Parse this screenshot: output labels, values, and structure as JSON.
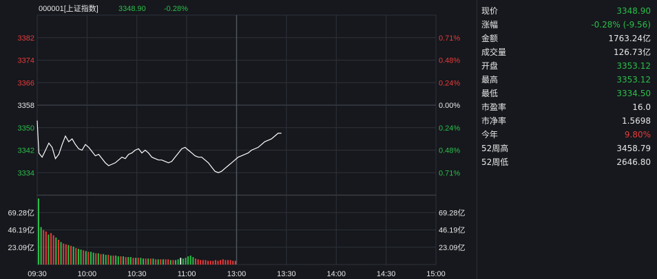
{
  "header": {
    "code_name": "000001[上证指数]",
    "last_price": "3348.90",
    "change_pct": "-0.28%"
  },
  "colors": {
    "background": "#16181d",
    "grid": "#2f323a",
    "price_line": "#ffffff",
    "up": "#e83a3a",
    "down": "#2bbf4a",
    "neutral": "#e8e8e8"
  },
  "chart_data": {
    "type": "line",
    "prev_close": 3358,
    "price_axis": {
      "ylim": [
        3326,
        3390
      ],
      "ticks": [
        {
          "value": 3382,
          "label": "3382",
          "pct": "0.71%",
          "side": "up"
        },
        {
          "value": 3374,
          "label": "3374",
          "pct": "0.48%",
          "side": "up"
        },
        {
          "value": 3366,
          "label": "3366",
          "pct": "0.24%",
          "side": "up"
        },
        {
          "value": 3358,
          "label": "3358",
          "pct": "0.00%",
          "side": "flat"
        },
        {
          "value": 3350,
          "label": "3350",
          "pct": "0.24%",
          "side": "down"
        },
        {
          "value": 3342,
          "label": "3342",
          "pct": "0.48%",
          "side": "down"
        },
        {
          "value": 3334,
          "label": "3334",
          "pct": "0.71%",
          "side": "down"
        }
      ]
    },
    "time_axis": {
      "labels": [
        "09:30",
        "10:00",
        "10:30",
        "11:00",
        "13:00",
        "13:30",
        "14:00",
        "14:30",
        "15:00"
      ],
      "total_minutes": 240
    },
    "price_series": [
      [
        0,
        3352.5
      ],
      [
        1,
        3341
      ],
      [
        3,
        3339.5
      ],
      [
        5,
        3342
      ],
      [
        7,
        3344.5
      ],
      [
        9,
        3343
      ],
      [
        11,
        3339
      ],
      [
        13,
        3340.5
      ],
      [
        15,
        3344
      ],
      [
        17,
        3347
      ],
      [
        19,
        3345
      ],
      [
        21,
        3346
      ],
      [
        23,
        3344
      ],
      [
        25,
        3342.5
      ],
      [
        27,
        3342
      ],
      [
        29,
        3344
      ],
      [
        31,
        3343
      ],
      [
        33,
        3341.5
      ],
      [
        35,
        3340
      ],
      [
        37,
        3340.5
      ],
      [
        39,
        3339
      ],
      [
        41,
        3337.5
      ],
      [
        43,
        3336.5
      ],
      [
        45,
        3337
      ],
      [
        47,
        3337.5
      ],
      [
        49,
        3338.5
      ],
      [
        51,
        3339.5
      ],
      [
        53,
        3339
      ],
      [
        55,
        3340.5
      ],
      [
        57,
        3341
      ],
      [
        59,
        3342
      ],
      [
        61,
        3342.5
      ],
      [
        63,
        3341
      ],
      [
        65,
        3342
      ],
      [
        67,
        3341
      ],
      [
        69,
        3339.5
      ],
      [
        71,
        3339
      ],
      [
        73,
        3338.5
      ],
      [
        75,
        3338.5
      ],
      [
        77,
        3338
      ],
      [
        79,
        3337.5
      ],
      [
        81,
        3338
      ],
      [
        83,
        3339.5
      ],
      [
        85,
        3341
      ],
      [
        87,
        3342.5
      ],
      [
        89,
        3343
      ],
      [
        91,
        3342
      ],
      [
        93,
        3341
      ],
      [
        95,
        3340
      ],
      [
        97,
        3339.5
      ],
      [
        99,
        3339.5
      ],
      [
        101,
        3338.5
      ],
      [
        103,
        3337.5
      ],
      [
        105,
        3336
      ],
      [
        107,
        3334.5
      ],
      [
        109,
        3334
      ],
      [
        111,
        3334.5
      ],
      [
        113,
        3335.5
      ],
      [
        115,
        3336.5
      ],
      [
        117,
        3337.5
      ],
      [
        119,
        3338.5
      ],
      [
        121,
        3339.5
      ],
      [
        123,
        3340
      ],
      [
        125,
        3340.5
      ],
      [
        127,
        3341
      ],
      [
        129,
        3342
      ],
      [
        131,
        3342.5
      ],
      [
        133,
        3343
      ],
      [
        135,
        3344
      ],
      [
        137,
        3345
      ],
      [
        139,
        3345.5
      ],
      [
        141,
        3346
      ],
      [
        143,
        3347
      ],
      [
        145,
        3348
      ],
      [
        147,
        3348
      ]
    ],
    "volume_axis": {
      "max": 92.5,
      "ticks": [
        {
          "value": 69.28,
          "label": "69.28亿"
        },
        {
          "value": 46.19,
          "label": "46.19亿"
        },
        {
          "value": 23.09,
          "label": "23.09亿"
        }
      ]
    },
    "volume_bars": [
      {
        "value": 88,
        "dir": "down"
      },
      {
        "value": 50,
        "dir": "down"
      },
      {
        "value": 46,
        "dir": "up"
      },
      {
        "value": 44,
        "dir": "up"
      },
      {
        "value": 40,
        "dir": "down"
      },
      {
        "value": 42,
        "dir": "up"
      },
      {
        "value": 39,
        "dir": "up"
      },
      {
        "value": 36,
        "dir": "down"
      },
      {
        "value": 33,
        "dir": "up"
      },
      {
        "value": 30,
        "dir": "down"
      },
      {
        "value": 28,
        "dir": "up"
      },
      {
        "value": 27,
        "dir": "up"
      },
      {
        "value": 26,
        "dir": "down"
      },
      {
        "value": 25,
        "dir": "up"
      },
      {
        "value": 24,
        "dir": "down"
      },
      {
        "value": 22,
        "dir": "up"
      },
      {
        "value": 21,
        "dir": "down"
      },
      {
        "value": 20,
        "dir": "down"
      },
      {
        "value": 19,
        "dir": "up"
      },
      {
        "value": 18,
        "dir": "down"
      },
      {
        "value": 17,
        "dir": "up"
      },
      {
        "value": 17,
        "dir": "down"
      },
      {
        "value": 16,
        "dir": "down"
      },
      {
        "value": 15,
        "dir": "up"
      },
      {
        "value": 15,
        "dir": "down"
      },
      {
        "value": 14,
        "dir": "up"
      },
      {
        "value": 14,
        "dir": "down"
      },
      {
        "value": 13,
        "dir": "down"
      },
      {
        "value": 13,
        "dir": "up"
      },
      {
        "value": 12,
        "dir": "down"
      },
      {
        "value": 12,
        "dir": "up"
      },
      {
        "value": 12,
        "dir": "down"
      },
      {
        "value": 11,
        "dir": "down"
      },
      {
        "value": 11,
        "dir": "up"
      },
      {
        "value": 11,
        "dir": "down"
      },
      {
        "value": 10,
        "dir": "up"
      },
      {
        "value": 10,
        "dir": "down"
      },
      {
        "value": 10,
        "dir": "down"
      },
      {
        "value": 9,
        "dir": "up"
      },
      {
        "value": 9,
        "dir": "down"
      },
      {
        "value": 9,
        "dir": "up"
      },
      {
        "value": 9,
        "dir": "down"
      },
      {
        "value": 8,
        "dir": "down"
      },
      {
        "value": 8,
        "dir": "up"
      },
      {
        "value": 8,
        "dir": "down"
      },
      {
        "value": 8,
        "dir": "up"
      },
      {
        "value": 8,
        "dir": "down"
      },
      {
        "value": 7,
        "dir": "up"
      },
      {
        "value": 7,
        "dir": "down"
      },
      {
        "value": 7,
        "dir": "up"
      },
      {
        "value": 7,
        "dir": "down"
      },
      {
        "value": 7,
        "dir": "up"
      },
      {
        "value": 7,
        "dir": "up"
      },
      {
        "value": 6,
        "dir": "down"
      },
      {
        "value": 6,
        "dir": "up"
      },
      {
        "value": 6,
        "dir": "down"
      },
      {
        "value": 7,
        "dir": "down"
      },
      {
        "value": 9,
        "dir": "flat"
      },
      {
        "value": 8,
        "dir": "down"
      },
      {
        "value": 9,
        "dir": "down"
      },
      {
        "value": 11,
        "dir": "down"
      },
      {
        "value": 12,
        "dir": "down"
      },
      {
        "value": 10,
        "dir": "down"
      },
      {
        "value": 8,
        "dir": "up"
      },
      {
        "value": 7,
        "dir": "up"
      },
      {
        "value": 6,
        "dir": "up"
      },
      {
        "value": 6,
        "dir": "up"
      },
      {
        "value": 6,
        "dir": "up"
      },
      {
        "value": 5,
        "dir": "up"
      },
      {
        "value": 5,
        "dir": "up"
      },
      {
        "value": 5,
        "dir": "up"
      },
      {
        "value": 6,
        "dir": "up"
      },
      {
        "value": 5,
        "dir": "up"
      },
      {
        "value": 6,
        "dir": "up"
      },
      {
        "value": 7,
        "dir": "up"
      },
      {
        "value": 6,
        "dir": "up"
      },
      {
        "value": 6,
        "dir": "up"
      },
      {
        "value": 6,
        "dir": "up"
      },
      {
        "value": 5,
        "dir": "up"
      },
      {
        "value": 5,
        "dir": "up"
      }
    ]
  },
  "quote_panel": [
    {
      "label": "现价",
      "value": "3348.90",
      "tone": "down"
    },
    {
      "label": "涨幅",
      "value": "-0.28% (-9.56)",
      "tone": "down"
    },
    {
      "label": "金额",
      "value": "1763.24亿",
      "tone": "neutral"
    },
    {
      "label": "成交量",
      "value": "126.73亿",
      "tone": "neutral"
    },
    {
      "label": "开盘",
      "value": "3353.12",
      "tone": "down"
    },
    {
      "label": "最高",
      "value": "3353.12",
      "tone": "down"
    },
    {
      "label": "最低",
      "value": "3334.50",
      "tone": "down"
    },
    {
      "label": "市盈率",
      "value": "16.0",
      "tone": "neutral"
    },
    {
      "label": "市净率",
      "value": "1.5698",
      "tone": "neutral"
    },
    {
      "label": "今年",
      "value": "9.80%",
      "tone": "up"
    },
    {
      "label": "52周高",
      "value": "3458.79",
      "tone": "neutral"
    },
    {
      "label": "52周低",
      "value": "2646.80",
      "tone": "neutral"
    }
  ]
}
